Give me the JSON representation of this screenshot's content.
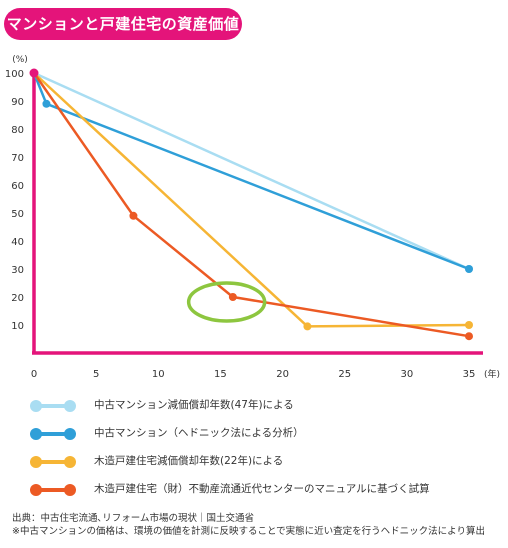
{
  "header": {
    "title": "マンションと戸建住宅の資産価値"
  },
  "chart_data": {
    "type": "line",
    "title": "マンションと戸建住宅の資産価値",
    "y_unit_label": "(%)",
    "x_unit_label": "(年)",
    "xlim": [
      0,
      35
    ],
    "ylim": [
      0,
      100
    ],
    "x_ticks": [
      "0",
      "5",
      "10",
      "15",
      "20",
      "25",
      "30",
      "35"
    ],
    "y_ticks": [
      "10",
      "20",
      "30",
      "40",
      "50",
      "60",
      "70",
      "80",
      "90",
      "100"
    ],
    "axis_color": "#e4147a",
    "series": [
      {
        "name": "中古マンション減価償却年数(47年)による",
        "color": "#a9ddf2",
        "points": [
          [
            0,
            100
          ],
          [
            35,
            30
          ]
        ]
      },
      {
        "name": "中古マンション（ヘドニック法による分析）",
        "color": "#2f9fd8",
        "points": [
          [
            0,
            100
          ],
          [
            1,
            89
          ],
          [
            35,
            30
          ]
        ]
      },
      {
        "name": "木造戸建住宅減価償却年数(22年)による",
        "color": "#f6b535",
        "points": [
          [
            0,
            100
          ],
          [
            22,
            9.5
          ],
          [
            35,
            10
          ]
        ]
      },
      {
        "name": "木造戸建住宅（財）不動産流通近代センターのマニュアルに基づく試算",
        "color": "#ec5a24",
        "points": [
          [
            0,
            100
          ],
          [
            8,
            49
          ],
          [
            16,
            20
          ],
          [
            35,
            6
          ]
        ]
      }
    ],
    "annotation": {
      "type": "ellipse-highlight",
      "at": [
        15.5,
        20
      ],
      "color": "#8dc63f"
    }
  },
  "source": {
    "line1": "出典：中古住宅流通､リフォーム市場の現状｜国土交通省",
    "line2": "※中古マンションの価格は、環境の価値を計測に反映することで実態に近い査定を行うヘドニック法により算出"
  }
}
